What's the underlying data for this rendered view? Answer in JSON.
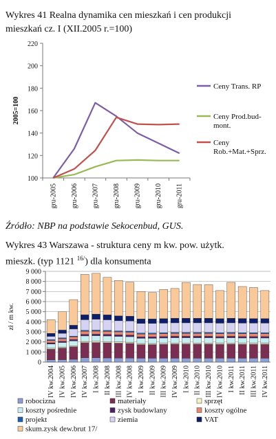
{
  "chart1": {
    "title_line1": "Wykres 41 Realna dynamika cen mieszkań i cen produkcji",
    "title_line2": "mieszkań cz. I (XII.2005 r.=100)",
    "ylabel": "2005=100"
  },
  "source": "Źródło: NBP na podstawie Sekocenbud, GUS.",
  "chart2": {
    "title_line1": "Wykres 43 Warszawa - struktura ceny m kw. pow. użytk.",
    "title_line2": "mieszk. (typ 1121",
    "title_sup": "16/",
    "title_line2_end": ") dla konsumenta",
    "ylabel": "zł / m kw."
  },
  "chart_data": [
    {
      "type": "line",
      "categories": [
        "gru-2005",
        "gru-2006",
        "gru-2007",
        "gru-2008",
        "gru-2009",
        "gru-2010",
        "gru-2011"
      ],
      "ylim": [
        100,
        220
      ],
      "yticks": [
        100,
        120,
        140,
        160,
        180,
        200,
        220
      ],
      "ylabel": "2005=100",
      "grid": false,
      "legend_position": "right",
      "series": [
        {
          "name_lines": [
            "Ceny Trans. RP"
          ],
          "color": "#7d5ea6",
          "values": [
            100,
            126,
            167,
            155,
            140,
            131,
            122
          ]
        },
        {
          "name_lines": [
            "Ceny Prod.bud-",
            "mont."
          ],
          "color": "#98b954",
          "values": [
            100,
            103,
            110,
            115.5,
            116,
            115.5,
            115.5
          ]
        },
        {
          "name_lines": [
            "Ceny",
            "Rob.+Mat.+Sprz."
          ],
          "color": "#c0504d",
          "values": [
            100,
            108,
            124.5,
            154,
            148,
            147.5,
            148
          ]
        }
      ]
    },
    {
      "type": "bar",
      "stacked": true,
      "categories": [
        "IV kw.2004",
        "IV kw.2005",
        "IV kw.2006",
        "IV kw.2007",
        "I kw.2008",
        "II kw.2008",
        "III kw.2008",
        "IV kw.2008",
        "I kw.2009",
        "II kw.2009",
        "III kw.2009",
        "IV kw.2009",
        "I kw.2010",
        "II kw.2010",
        "III kw.2010",
        "IV kw.2010",
        "I kw.2011",
        "II kw.2011",
        "III kw.2011",
        "IV kw.2011"
      ],
      "ylim": [
        0,
        9000
      ],
      "yticks": [
        0,
        1000,
        2000,
        3000,
        4000,
        5000,
        6000,
        7000,
        8000,
        9000
      ],
      "ytick_labels": [
        "0",
        "1 000",
        "2 000",
        "3 000",
        "4 000",
        "5 000",
        "6 000",
        "7 000",
        "8 000",
        "9 000"
      ],
      "ylabel": "zł / m kw.",
      "grid": true,
      "legend_position": "bottom",
      "series": [
        {
          "name": "robocizna",
          "color": "#8c9fd6",
          "values": [
            220,
            240,
            270,
            420,
            420,
            410,
            400,
            400,
            380,
            380,
            380,
            380,
            380,
            380,
            380,
            380,
            380,
            380,
            380,
            380
          ]
        },
        {
          "name": "materiały",
          "color": "#7b2d52",
          "values": [
            1050,
            1150,
            1250,
            1500,
            1520,
            1500,
            1480,
            1450,
            1350,
            1350,
            1380,
            1400,
            1400,
            1400,
            1400,
            1380,
            1400,
            1380,
            1380,
            1380
          ]
        },
        {
          "name": "sprzęt",
          "color": "#f5f2c4",
          "values": [
            100,
            100,
            100,
            120,
            120,
            120,
            120,
            120,
            110,
            110,
            110,
            110,
            110,
            110,
            110,
            110,
            110,
            110,
            110,
            110
          ]
        },
        {
          "name": "koszty pośrednie",
          "color": "#c7eef2",
          "values": [
            420,
            450,
            480,
            560,
            560,
            560,
            550,
            550,
            520,
            520,
            520,
            530,
            530,
            530,
            530,
            520,
            530,
            520,
            520,
            520
          ]
        },
        {
          "name": "zysk budowlany",
          "color": "#4e1f66",
          "values": [
            120,
            130,
            140,
            150,
            150,
            150,
            150,
            150,
            140,
            140,
            140,
            140,
            140,
            140,
            140,
            140,
            140,
            140,
            140,
            140
          ]
        },
        {
          "name": "koszty ogólne",
          "color": "#e8866f",
          "values": [
            230,
            250,
            260,
            300,
            300,
            300,
            300,
            300,
            280,
            280,
            280,
            280,
            280,
            280,
            280,
            280,
            280,
            280,
            280,
            280
          ]
        },
        {
          "name": "projekt",
          "color": "#1f5fb0",
          "values": [
            80,
            80,
            80,
            100,
            100,
            100,
            100,
            100,
            100,
            100,
            100,
            100,
            100,
            100,
            100,
            100,
            100,
            100,
            100,
            100
          ]
        },
        {
          "name": "ziemia",
          "color": "#d6d3f2",
          "values": [
            330,
            450,
            700,
            1050,
            1080,
            1050,
            1000,
            1000,
            950,
            950,
            950,
            950,
            950,
            950,
            950,
            950,
            950,
            950,
            950,
            950
          ]
        },
        {
          "name": "VAT",
          "color": "#0d1e6b",
          "values": [
            300,
            330,
            380,
            500,
            500,
            500,
            480,
            480,
            450,
            450,
            450,
            460,
            460,
            460,
            460,
            450,
            460,
            460,
            460,
            460
          ]
        },
        {
          "name": "skum.zysk dew.brut 17/",
          "color": "#fac999",
          "values": [
            1350,
            1820,
            2540,
            4000,
            4050,
            3710,
            3520,
            3370,
            2720,
            2620,
            2890,
            2950,
            3550,
            3350,
            3330,
            2790,
            3560,
            3180,
            3080,
            2780
          ]
        }
      ]
    }
  ]
}
